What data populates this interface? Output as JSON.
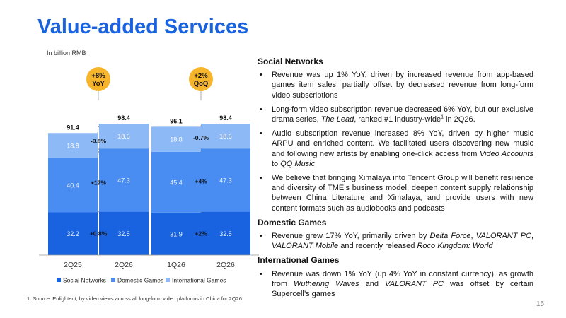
{
  "title": "Value-added Services",
  "unit_label": "In billion RMB",
  "chart_data": {
    "type": "bar",
    "stacked": true,
    "panels": [
      {
        "categories": [
          "2Q25",
          "2Q26"
        ],
        "series": [
          {
            "name": "Social Networks",
            "color": "#1a63e0",
            "values": [
              32.2,
              32.5
            ]
          },
          {
            "name": "Domestic Games",
            "color": "#4a8df2",
            "values": [
              40.4,
              47.3
            ]
          },
          {
            "name": "International Games",
            "color": "#8db9f7",
            "values": [
              18.8,
              18.6
            ]
          }
        ],
        "totals": [
          "91.4",
          "98.4"
        ],
        "changes": [
          "+0.8%",
          "+17%",
          "-0.8%"
        ],
        "badge": [
          "+8%",
          "YoY"
        ]
      },
      {
        "categories": [
          "1Q26",
          "2Q26"
        ],
        "series": [
          {
            "name": "Social Networks",
            "color": "#1a63e0",
            "values": [
              31.9,
              32.5
            ]
          },
          {
            "name": "Domestic Games",
            "color": "#4a8df2",
            "values": [
              45.4,
              47.3
            ]
          },
          {
            "name": "International Games",
            "color": "#8db9f7",
            "values": [
              18.8,
              18.6
            ]
          }
        ],
        "totals": [
          "96.1",
          "98.4"
        ],
        "changes": [
          "+2%",
          "+4%",
          "-0.7%"
        ],
        "badge": [
          "+2%",
          "QoQ"
        ]
      }
    ],
    "legend": [
      "Social Networks",
      "Domestic Games",
      "International Games"
    ],
    "legend_position": "bottom",
    "grid": false
  },
  "text": {
    "social_heading": "Social Networks",
    "social_b1": "Revenue was up 1% YoY, driven by increased revenue from app-based games item sales, partially offset by decreased revenue from long-form video subscriptions",
    "social_b2_a": "Long-form video subscription revenue decreased 6% YoY, but our exclusive drama series, ",
    "social_b2_it": "The Lead",
    "social_b2_b": ", ranked #1 industry-wide",
    "social_b2_sup": "1",
    "social_b2_c": " in 2Q26.",
    "social_b3_a": "Audio subscription revenue increased 8% YoY, driven by higher music ARPU and enriched content. We facilitated users discovering new music and following new artists by enabling one-click access from ",
    "social_b3_it1": "Video Accounts",
    "social_b3_b": " to ",
    "social_b3_it2": "QQ Music",
    "social_b4": "We believe that bringing Ximalaya into Tencent Group will benefit resilience and diversity of TME’s business model, deepen content supply relationship between China Literature and Ximalaya, and provide users with new content formats such as audiobooks and podcasts",
    "domestic_heading": "Domestic Games",
    "domestic_b1_a": "Revenue grew 17% YoY, primarily driven by ",
    "domestic_b1_it1": "Delta Force",
    "domestic_b1_b": ", ",
    "domestic_b1_it2": "VALORANT PC",
    "domestic_b1_c": ", ",
    "domestic_b1_it3": "VALORANT Mobile",
    "domestic_b1_d": " and recently released ",
    "domestic_b1_it4": "Roco Kingdom: World",
    "intl_heading": "International Games",
    "intl_b1_a": "Revenue was down 1% YoY (up 4% YoY in constant currency), as growth from ",
    "intl_b1_it1": "Wuthering Waves",
    "intl_b1_b": " and ",
    "intl_b1_it2": "VALORANT PC",
    "intl_b1_c": " was offset by certain Supercell’s games"
  },
  "footnote": "1.    Source: Enlightent, by video views across all long-form video platforms in China for 2Q26",
  "page_number": "15"
}
